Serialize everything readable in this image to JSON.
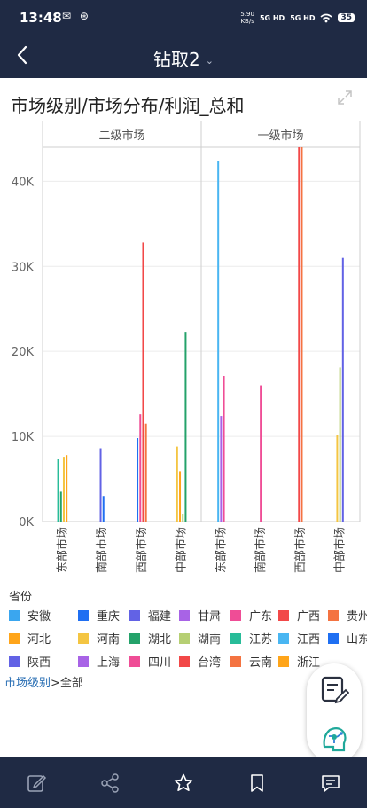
{
  "status_bar": {
    "time": "13:48",
    "left_icons": "✉ ⊛",
    "net_speed_value": "5.90",
    "net_speed_unit": "KB/s",
    "signal1": "5G HD",
    "signal2": "5G HD",
    "battery": "35"
  },
  "nav": {
    "back_icon": "back-arrow-icon",
    "title": "钻取2",
    "dropdown_icon": "chevron-down-icon"
  },
  "chart_title": "市场级别/市场分布/利润_总和",
  "legend": {
    "title": "省份",
    "items": [
      {
        "label": "安徽",
        "color": "#3aa6ef"
      },
      {
        "label": "重庆",
        "color": "#1f6ff2"
      },
      {
        "label": "福建",
        "color": "#6262e5"
      },
      {
        "label": "甘肃",
        "color": "#a863e6"
      },
      {
        "label": "广东",
        "color": "#ef4d96"
      },
      {
        "label": "广西",
        "color": "#f24848"
      },
      {
        "label": "贵州",
        "color": "#f47341"
      },
      {
        "label": "河北",
        "color": "#ffa51a"
      },
      {
        "label": "河南",
        "color": "#f4c542"
      },
      {
        "label": "湖北",
        "color": "#24a26a"
      },
      {
        "label": "湖南",
        "color": "#b6cf73"
      },
      {
        "label": "江苏",
        "color": "#28bc99"
      },
      {
        "label": "江西",
        "color": "#49b6f2"
      },
      {
        "label": "山东",
        "color": "#1f6ff2"
      },
      {
        "label": "陕西",
        "color": "#6262e5"
      },
      {
        "label": "上海",
        "color": "#a863e6"
      },
      {
        "label": "四川",
        "color": "#ef4d96"
      },
      {
        "label": "台湾",
        "color": "#f24848"
      },
      {
        "label": "云南",
        "color": "#f47341"
      },
      {
        "label": "浙江",
        "color": "#ffa51a"
      }
    ]
  },
  "breadcrumb": {
    "link": "市场级别",
    "sep": ">",
    "current": "全部"
  },
  "bottom_bar": {
    "icons": [
      "edit-icon",
      "share-icon",
      "star-icon",
      "bookmark-icon",
      "comment-icon"
    ]
  },
  "fab": {
    "icons": [
      "note-edit-icon",
      "ai-assistant-icon"
    ]
  },
  "chart_data": {
    "type": "bar",
    "title": "市场级别/市场分布/利润_总和",
    "ylim": [
      0,
      44000
    ],
    "yticks": [
      0,
      10000,
      20000,
      30000,
      40000
    ],
    "ytick_labels": [
      "0K",
      "10K",
      "20K",
      "30K",
      "40K"
    ],
    "grid": true,
    "legend_position": "bottom",
    "panels": [
      {
        "name": "二级市场",
        "categories": [
          "东部市场",
          "南部市场",
          "西部市场",
          "中部市场"
        ],
        "bars": [
          [
            {
              "color": "#28bc99",
              "value": 7300
            },
            {
              "color": "#24a26a",
              "value": 3500
            },
            {
              "color": "#f4c542",
              "value": 7600
            },
            {
              "color": "#ffa51a",
              "value": 7800
            }
          ],
          [
            {
              "color": "#6262e5",
              "value": 8600
            },
            {
              "color": "#1f6ff2",
              "value": 3000
            }
          ],
          [
            {
              "color": "#1f6ff2",
              "value": 9800
            },
            {
              "color": "#ef4d96",
              "value": 12600
            },
            {
              "color": "#f24848",
              "value": 32800
            },
            {
              "color": "#f47341",
              "value": 11500
            }
          ],
          [
            {
              "color": "#f4c542",
              "value": 8800
            },
            {
              "color": "#ffa51a",
              "value": 5900
            },
            {
              "color": "#b6cf73",
              "value": 900
            },
            {
              "color": "#24a26a",
              "value": 22300
            }
          ]
        ]
      },
      {
        "name": "一级市场",
        "categories": [
          "东部市场",
          "南部市场",
          "西部市场",
          "中部市场"
        ],
        "bars": [
          [
            {
              "color": "#49b6f2",
              "value": 42400
            },
            {
              "color": "#a863e6",
              "value": 12400
            },
            {
              "color": "#ef4d96",
              "value": 17100
            }
          ],
          [
            {
              "color": "#ef4d96",
              "value": 16000
            }
          ],
          [
            {
              "color": "#f24848",
              "value": 44000
            },
            {
              "color": "#f47341",
              "value": 44000
            }
          ],
          [
            {
              "color": "#f4c542",
              "value": 10200
            },
            {
              "color": "#b6cf73",
              "value": 18100
            },
            {
              "color": "#6262e5",
              "value": 31000
            }
          ]
        ]
      }
    ]
  }
}
